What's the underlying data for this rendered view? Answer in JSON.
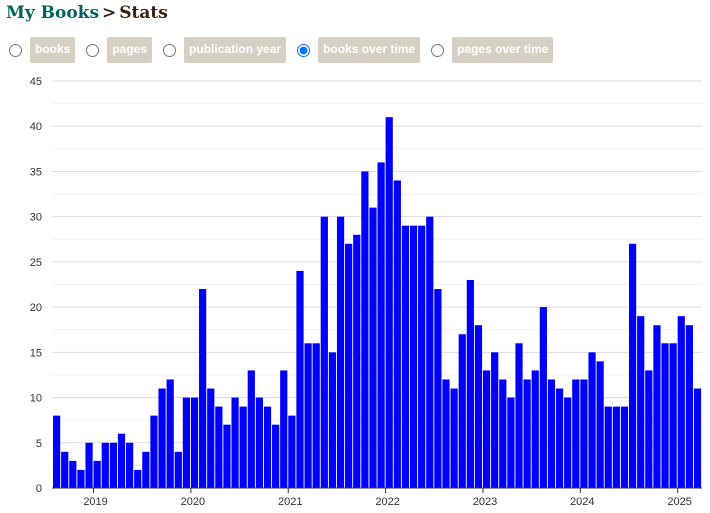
{
  "breadcrumb": {
    "link": "My Books",
    "separator": ">",
    "current": "Stats"
  },
  "view_options": {
    "selected": "books over time",
    "items": [
      {
        "label": "books",
        "checked": false
      },
      {
        "label": "pages",
        "checked": false
      },
      {
        "label": "publication year",
        "checked": false
      },
      {
        "label": "books over time",
        "checked": true
      },
      {
        "label": "pages over time",
        "checked": false
      }
    ]
  },
  "chart_data": {
    "type": "bar",
    "bar_color": "#0000ff",
    "grid": true,
    "ylim": [
      0,
      45
    ],
    "y_ticks": [
      "0",
      "5",
      "10",
      "15",
      "20",
      "25",
      "30",
      "35",
      "40",
      "45"
    ],
    "x_tick_labels": [
      "2019",
      "2020",
      "2021",
      "2022",
      "2023",
      "2024",
      "2025"
    ],
    "x_start": "2018-08",
    "values": [
      8,
      4,
      3,
      2,
      5,
      3,
      5,
      5,
      6,
      5,
      2,
      4,
      8,
      11,
      12,
      4,
      10,
      10,
      22,
      11,
      9,
      7,
      10,
      9,
      13,
      10,
      9,
      7,
      13,
      8,
      24,
      16,
      16,
      30,
      15,
      30,
      27,
      28,
      35,
      31,
      36,
      41,
      34,
      29,
      29,
      29,
      30,
      22,
      12,
      11,
      17,
      23,
      18,
      13,
      15,
      12,
      10,
      16,
      12,
      13,
      20,
      12,
      11,
      10,
      12,
      12,
      15,
      14,
      9,
      9,
      9,
      27,
      19,
      13,
      18,
      16,
      16,
      19,
      18,
      11
    ]
  }
}
